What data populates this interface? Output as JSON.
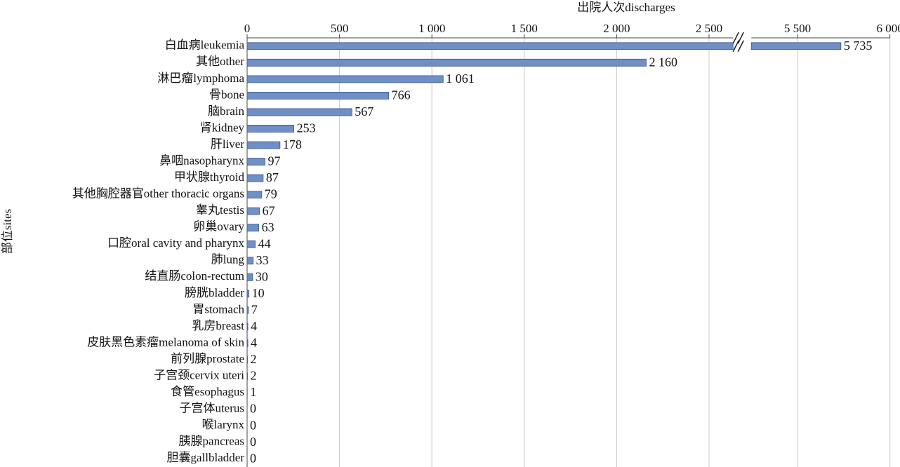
{
  "chart_data": {
    "type": "barh",
    "x_label": "出院人次discharges",
    "y_label": "部位sites",
    "categories": [
      "白血病leukemia",
      "其他other",
      "淋巴瘤lymphoma",
      "骨bone",
      "脑brain",
      "肾kidney",
      "肝liver",
      "鼻咽nasopharynx",
      "甲状腺thyroid",
      "其他胸腔器官other thoracic organs",
      "睾丸testis",
      "卵巢ovary",
      "口腔oral cavity and pharynx",
      "肺lung",
      "结直肠colon-rectum",
      "膀胱bladder",
      "胃stomach",
      "乳房breast",
      "皮肤黑色素瘤melanoma of skin",
      "前列腺prostate",
      "子宫颈cervix uteri",
      "食管esophagus",
      "子宫体uterus",
      "喉larynx",
      "胰腺pancreas",
      "胆囊gallbladder"
    ],
    "values": [
      5735,
      2160,
      1061,
      766,
      567,
      253,
      178,
      97,
      87,
      79,
      67,
      63,
      44,
      33,
      30,
      10,
      7,
      4,
      4,
      2,
      2,
      1,
      0,
      0,
      0,
      0
    ],
    "value_labels": [
      "5 735",
      "2 160",
      "1 061",
      "766",
      "567",
      "253",
      "178",
      "97",
      "87",
      "79",
      "67",
      "63",
      "44",
      "33",
      "30",
      "10",
      "7",
      "4",
      "4",
      "2",
      "2",
      "1",
      "0",
      "0",
      "0",
      "0"
    ],
    "color": "#6f8fc6",
    "xlim": [
      0,
      6000
    ],
    "x_break": [
      2630,
      5250
    ],
    "xticks": [
      0,
      500,
      {
        "value": 1000,
        "label": "1 000"
      },
      {
        "value": 1500,
        "label": "1 500"
      },
      {
        "value": 2000,
        "label": "2 000"
      },
      {
        "value": 2500,
        "label": "2 500"
      },
      {
        "value": 5500,
        "label": "5 500"
      },
      {
        "value": 6000,
        "label": "6 000"
      }
    ],
    "grid": true
  }
}
